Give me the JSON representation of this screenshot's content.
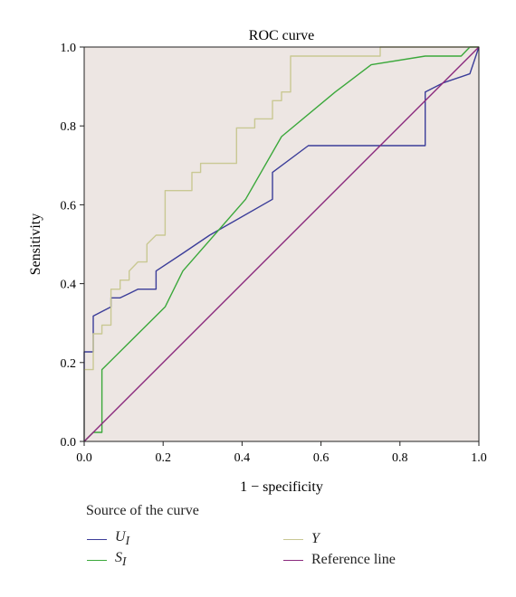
{
  "chart_data": {
    "type": "line",
    "title": "ROC curve",
    "xlabel": "1 − specificity",
    "ylabel": "Sensitivity",
    "xlim": [
      0,
      1
    ],
    "ylim": [
      0,
      1
    ],
    "xticks": [
      "0.0",
      "0.2",
      "0.4",
      "0.6",
      "0.8",
      "1.0"
    ],
    "yticks": [
      "0.0",
      "0.2",
      "0.4",
      "0.6",
      "0.8",
      "1.0"
    ],
    "grid": false,
    "legend_title": "Source of the curve",
    "legend_position": "bottom",
    "plot_background": "#ede6e3",
    "series": [
      {
        "name": "U",
        "subscript": "I",
        "color": "#3b3d99",
        "points": [
          [
            0,
            0
          ],
          [
            0,
            0.227
          ],
          [
            0.023,
            0.227
          ],
          [
            0.023,
            0.318
          ],
          [
            0.068,
            0.341
          ],
          [
            0.068,
            0.364
          ],
          [
            0.091,
            0.364
          ],
          [
            0.114,
            0.375
          ],
          [
            0.136,
            0.386
          ],
          [
            0.182,
            0.386
          ],
          [
            0.182,
            0.432
          ],
          [
            0.25,
            0.477
          ],
          [
            0.318,
            0.523
          ],
          [
            0.477,
            0.614
          ],
          [
            0.477,
            0.682
          ],
          [
            0.568,
            0.75
          ],
          [
            0.864,
            0.75
          ],
          [
            0.864,
            0.886
          ],
          [
            0.909,
            0.909
          ],
          [
            0.977,
            0.932
          ],
          [
            1.0,
            1.0
          ]
        ]
      },
      {
        "name": "S",
        "subscript": "I",
        "color": "#3ba83b",
        "points": [
          [
            0,
            0
          ],
          [
            0.023,
            0.023
          ],
          [
            0.045,
            0.023
          ],
          [
            0.045,
            0.182
          ],
          [
            0.205,
            0.341
          ],
          [
            0.25,
            0.432
          ],
          [
            0.409,
            0.614
          ],
          [
            0.5,
            0.773
          ],
          [
            0.636,
            0.886
          ],
          [
            0.727,
            0.955
          ],
          [
            0.864,
            0.977
          ],
          [
            0.955,
            0.977
          ],
          [
            0.977,
            1.0
          ],
          [
            1.0,
            1.0
          ]
        ]
      },
      {
        "name": "Y",
        "subscript": "",
        "color": "#c9c893",
        "points": [
          [
            0,
            0
          ],
          [
            0,
            0.182
          ],
          [
            0.023,
            0.182
          ],
          [
            0.023,
            0.273
          ],
          [
            0.045,
            0.273
          ],
          [
            0.045,
            0.295
          ],
          [
            0.068,
            0.295
          ],
          [
            0.068,
            0.386
          ],
          [
            0.091,
            0.386
          ],
          [
            0.091,
            0.409
          ],
          [
            0.114,
            0.409
          ],
          [
            0.114,
            0.432
          ],
          [
            0.136,
            0.455
          ],
          [
            0.159,
            0.455
          ],
          [
            0.159,
            0.5
          ],
          [
            0.182,
            0.523
          ],
          [
            0.205,
            0.523
          ],
          [
            0.205,
            0.636
          ],
          [
            0.273,
            0.636
          ],
          [
            0.273,
            0.682
          ],
          [
            0.295,
            0.682
          ],
          [
            0.295,
            0.705
          ],
          [
            0.386,
            0.705
          ],
          [
            0.386,
            0.795
          ],
          [
            0.432,
            0.795
          ],
          [
            0.432,
            0.818
          ],
          [
            0.477,
            0.818
          ],
          [
            0.477,
            0.864
          ],
          [
            0.5,
            0.864
          ],
          [
            0.5,
            0.886
          ],
          [
            0.523,
            0.886
          ],
          [
            0.523,
            0.977
          ],
          [
            0.75,
            0.977
          ],
          [
            0.75,
            1.0
          ],
          [
            1.0,
            1.0
          ]
        ]
      },
      {
        "name": "Reference line",
        "subscript": "",
        "color": "#8b2a7e",
        "points": [
          [
            0,
            0
          ],
          [
            1,
            1
          ]
        ]
      }
    ]
  }
}
